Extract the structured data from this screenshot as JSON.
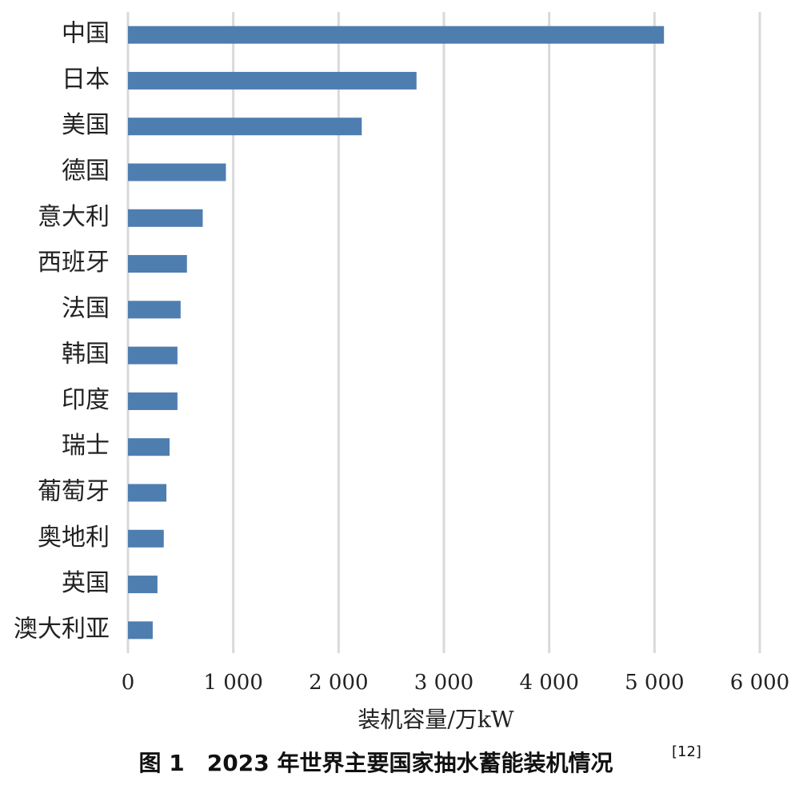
{
  "chart_data": {
    "type": "barh",
    "title": "图 1　2023 年世界主要国家抽水蓄能装机情况",
    "title_ref": "[12]",
    "x_label": "装机容量/万kW",
    "categories": [
      "中国",
      "日本",
      "美国",
      "德国",
      "意大利",
      "西班牙",
      "法国",
      "韩国",
      "印度",
      "瑞士",
      "葡萄牙",
      "奥地利",
      "英国",
      "澳大利亚"
    ],
    "values": [
      5090,
      2740,
      2220,
      930,
      710,
      560,
      500,
      470,
      470,
      395,
      365,
      340,
      280,
      235
    ],
    "color": "#4e7db0",
    "xlim": [
      0,
      6000
    ],
    "xticks": [
      0,
      {
        "value": 1000,
        "label": "1 000"
      },
      {
        "value": 2000,
        "label": "2 000"
      },
      {
        "value": 3000,
        "label": "3 000"
      },
      {
        "value": 4000,
        "label": "4 000"
      },
      {
        "value": 5000,
        "label": "5 000"
      },
      {
        "value": 6000,
        "label": "6 000"
      }
    ],
    "grid": true
  }
}
